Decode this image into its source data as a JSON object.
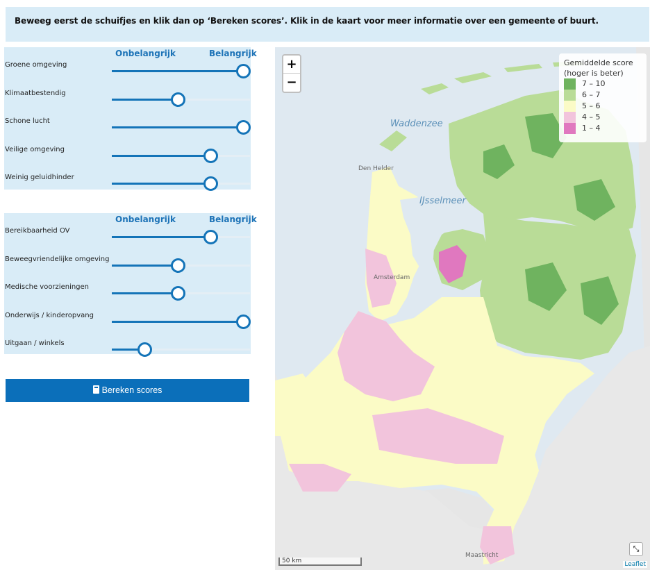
{
  "banner": {
    "text": "Beweeg eerst de schuifjes en klik dan op ‘Bereken scores’. Klik in de kaart voor meer informatie over een gemeente of buurt."
  },
  "panel1": {
    "low_label": "Onbelangrijk",
    "high_label": "Belangrijk",
    "sliders": [
      {
        "label": "Groene omgeving",
        "value": 1.0
      },
      {
        "label": "Klimaatbestendig",
        "value": 0.5
      },
      {
        "label": "Schone lucht",
        "value": 1.0
      },
      {
        "label": "Veilige omgeving",
        "value": 0.75
      },
      {
        "label": "Weinig geluidhinder",
        "value": 0.75
      }
    ]
  },
  "panel2": {
    "low_label": "Onbelangrijk",
    "high_label": "Belangrijk",
    "sliders": [
      {
        "label": "Bereikbaarheid OV",
        "value": 0.75
      },
      {
        "label": "Beweegvriendelijke omgeving",
        "value": 0.5
      },
      {
        "label": "Medische voorzieningen",
        "value": 0.5
      },
      {
        "label": "Onderwijs / kinderopvang",
        "value": 1.0
      },
      {
        "label": "Uitgaan / winkels",
        "value": 0.25
      }
    ]
  },
  "calc_button": {
    "label": "Bereken scores",
    "icon": "calculator-icon"
  },
  "map": {
    "zoom_in": "+",
    "zoom_out": "−",
    "legend": {
      "title": "Gemiddelde score (hoger is beter)",
      "items": [
        {
          "label": "7 – 10",
          "color": "#6fb35f"
        },
        {
          "label": "6 – 7",
          "color": "#b9dc97"
        },
        {
          "label": "5 – 6",
          "color": "#fbfbc6"
        },
        {
          "label": "4 – 5",
          "color": "#f2c4dc"
        },
        {
          "label": "1 – 4",
          "color": "#e078bf"
        }
      ]
    },
    "labels": {
      "waddenzee": "Waddenzee",
      "ijsselmeer": "IJsselmeer",
      "den_helder": "Den Helder",
      "amsterdam": "Amsterdam",
      "maastricht": "Maastricht"
    },
    "scale": "50 km",
    "attribution": "Leaflet",
    "fullscreen_icon": "expand-icon"
  }
}
